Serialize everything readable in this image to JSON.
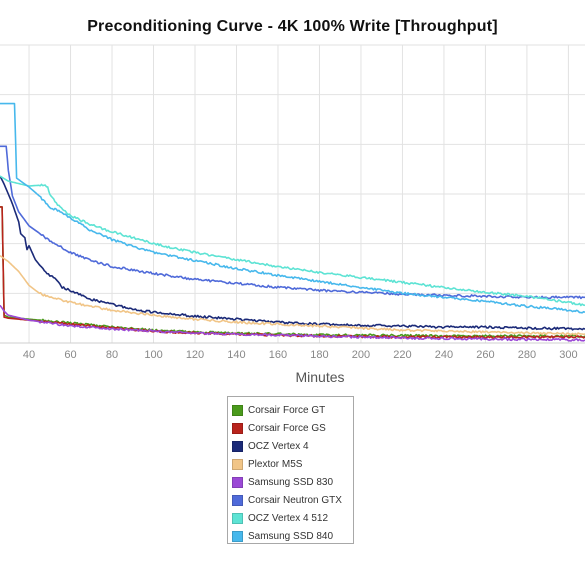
{
  "chart_data": {
    "type": "line",
    "title": "Preconditioning Curve - 4K 100% Write [Throughput]",
    "xlabel": "Minutes",
    "ylabel": "",
    "xlim": [
      26,
      308
    ],
    "ylim": [
      0,
      300
    ],
    "x_ticks": [
      40,
      60,
      80,
      100,
      120,
      140,
      160,
      180,
      200,
      220,
      240,
      260,
      280,
      300
    ],
    "grid": true,
    "legend_position": "bottom-center",
    "series": [
      {
        "name": "Corsair Force GT",
        "color": "#4a9a1c",
        "points": [
          [
            26,
            137
          ],
          [
            27,
            137
          ],
          [
            28,
            28
          ],
          [
            30,
            26
          ],
          [
            40,
            24
          ],
          [
            60,
            20
          ],
          [
            80,
            16
          ],
          [
            100,
            13
          ],
          [
            120,
            11
          ],
          [
            140,
            10
          ],
          [
            160,
            9
          ],
          [
            180,
            8
          ],
          [
            200,
            8
          ],
          [
            240,
            7
          ],
          [
            280,
            7
          ],
          [
            308,
            7
          ]
        ]
      },
      {
        "name": "Corsair Force GS",
        "color": "#b8231c",
        "points": [
          [
            26,
            137
          ],
          [
            27,
            137
          ],
          [
            28,
            26
          ],
          [
            30,
            25
          ],
          [
            40,
            23
          ],
          [
            60,
            19
          ],
          [
            80,
            15
          ],
          [
            100,
            12
          ],
          [
            120,
            10
          ],
          [
            140,
            9
          ],
          [
            160,
            8
          ],
          [
            180,
            7
          ],
          [
            220,
            6
          ],
          [
            260,
            6
          ],
          [
            308,
            6
          ]
        ]
      },
      {
        "name": "OCZ Vertex 4",
        "color": "#1b2a78",
        "points": [
          [
            26,
            168
          ],
          [
            28,
            160
          ],
          [
            32,
            140
          ],
          [
            35,
            122
          ],
          [
            36,
            110
          ],
          [
            38,
            106
          ],
          [
            39,
            94
          ],
          [
            40,
            98
          ],
          [
            43,
            84
          ],
          [
            46,
            76
          ],
          [
            50,
            68
          ],
          [
            53,
            64
          ],
          [
            56,
            56
          ],
          [
            58,
            54
          ],
          [
            60,
            53
          ],
          [
            70,
            44
          ],
          [
            80,
            39
          ],
          [
            90,
            34
          ],
          [
            100,
            31
          ],
          [
            120,
            27
          ],
          [
            140,
            24
          ],
          [
            160,
            21
          ],
          [
            180,
            19
          ],
          [
            200,
            18
          ],
          [
            220,
            17
          ],
          [
            240,
            16
          ],
          [
            260,
            16
          ],
          [
            280,
            15
          ],
          [
            308,
            14
          ]
        ]
      },
      {
        "name": "Plextor M5S",
        "color": "#f1c587",
        "points": [
          [
            26,
            88
          ],
          [
            30,
            82
          ],
          [
            35,
            72
          ],
          [
            40,
            58
          ],
          [
            45,
            50
          ],
          [
            50,
            46
          ],
          [
            60,
            41
          ],
          [
            70,
            37
          ],
          [
            80,
            33
          ],
          [
            100,
            28
          ],
          [
            120,
            24
          ],
          [
            140,
            21
          ],
          [
            160,
            19
          ],
          [
            180,
            17
          ],
          [
            200,
            15
          ],
          [
            220,
            13
          ],
          [
            240,
            12
          ],
          [
            260,
            11
          ],
          [
            280,
            10
          ],
          [
            308,
            9
          ]
        ]
      },
      {
        "name": "Samsung SSD 830",
        "color": "#9b49d6",
        "points": [
          [
            26,
            38
          ],
          [
            28,
            32
          ],
          [
            30,
            28
          ],
          [
            40,
            23
          ],
          [
            60,
            17
          ],
          [
            80,
            14
          ],
          [
            100,
            12
          ],
          [
            120,
            10
          ],
          [
            140,
            9
          ],
          [
            160,
            8
          ],
          [
            180,
            7
          ],
          [
            200,
            6
          ],
          [
            220,
            5
          ],
          [
            260,
            4
          ],
          [
            308,
            3
          ]
        ]
      },
      {
        "name": "Corsair Neutron GTX",
        "color": "#4f6ad9",
        "points": [
          [
            26,
            198
          ],
          [
            29,
            198
          ],
          [
            30,
            174
          ],
          [
            32,
            148
          ],
          [
            35,
            132
          ],
          [
            40,
            118
          ],
          [
            50,
            103
          ],
          [
            60,
            91
          ],
          [
            70,
            83
          ],
          [
            80,
            77
          ],
          [
            100,
            70
          ],
          [
            120,
            64
          ],
          [
            140,
            60
          ],
          [
            160,
            56
          ],
          [
            180,
            53
          ],
          [
            200,
            51
          ],
          [
            220,
            49
          ],
          [
            240,
            48
          ],
          [
            260,
            47
          ],
          [
            280,
            46
          ],
          [
            300,
            46
          ],
          [
            308,
            46
          ]
        ]
      },
      {
        "name": "OCZ Vertex 4 512",
        "color": "#5de3d4",
        "points": [
          [
            26,
            168
          ],
          [
            30,
            163
          ],
          [
            40,
            158
          ],
          [
            46,
            159
          ],
          [
            49,
            158
          ],
          [
            50,
            149
          ],
          [
            55,
            136
          ],
          [
            60,
            128
          ],
          [
            70,
            119
          ],
          [
            80,
            112
          ],
          [
            90,
            106
          ],
          [
            100,
            100
          ],
          [
            120,
            91
          ],
          [
            140,
            84
          ],
          [
            160,
            77
          ],
          [
            180,
            71
          ],
          [
            200,
            66
          ],
          [
            220,
            61
          ],
          [
            240,
            56
          ],
          [
            260,
            51
          ],
          [
            280,
            47
          ],
          [
            300,
            41
          ],
          [
            308,
            38
          ]
        ]
      },
      {
        "name": "Samsung SSD 840",
        "color": "#47b8ec",
        "points": [
          [
            26,
            241
          ],
          [
            33,
            241
          ],
          [
            34,
            166
          ],
          [
            36,
            163
          ],
          [
            40,
            157
          ],
          [
            45,
            148
          ],
          [
            50,
            137
          ],
          [
            55,
            132
          ],
          [
            60,
            126
          ],
          [
            70,
            113
          ],
          [
            80,
            104
          ],
          [
            100,
            91
          ],
          [
            120,
            83
          ],
          [
            140,
            75
          ],
          [
            160,
            68
          ],
          [
            180,
            62
          ],
          [
            200,
            56
          ],
          [
            220,
            50
          ],
          [
            240,
            46
          ],
          [
            260,
            42
          ],
          [
            280,
            37
          ],
          [
            300,
            33
          ],
          [
            308,
            31
          ]
        ]
      }
    ]
  }
}
